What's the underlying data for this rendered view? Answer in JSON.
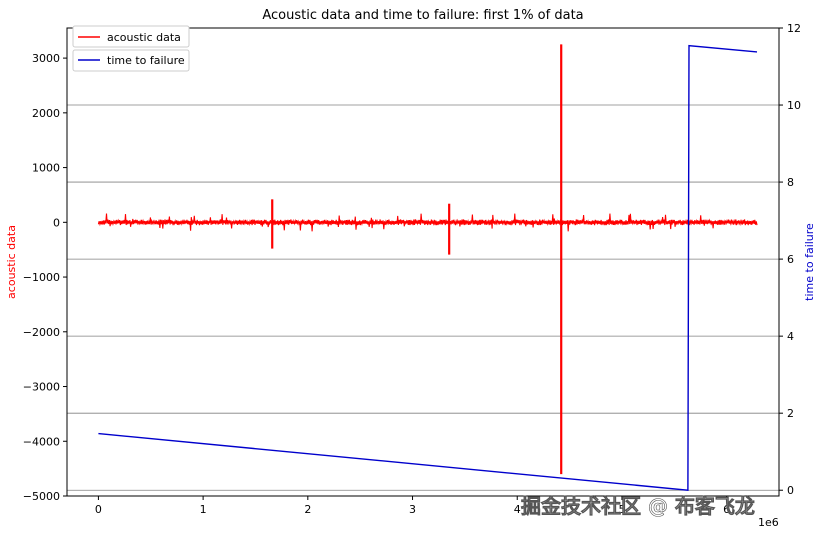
{
  "chart_data": {
    "type": "line",
    "title": "Acoustic data and time to failure: first 1% of data",
    "xlabel": "",
    "x_offset_label": "1e6",
    "ylabel_left": "acoustic data",
    "ylabel_right": "time to failure",
    "xlim": [
      -0.3,
      6.5
    ],
    "ylim_left": [
      -5000,
      3550
    ],
    "ylim_right": [
      -0.15,
      12.0
    ],
    "x_ticks": [
      "0",
      "1",
      "2",
      "3",
      "4",
      "5",
      "6"
    ],
    "y_left_ticks": [
      "3000",
      "2000",
      "1000",
      "0",
      "−1000",
      "−2000",
      "−3000",
      "−4000",
      "−5000"
    ],
    "y_right_ticks": [
      "0",
      "2",
      "4",
      "6",
      "8",
      "10",
      "12"
    ],
    "grid": "right-axis horizontal",
    "legend": "top-left",
    "colors": {
      "acoustic": "#ff0000",
      "ttf": "#0000cc",
      "grid": "#808080"
    },
    "series": [
      {
        "name": "acoustic data",
        "axis": "left",
        "baseline": 0,
        "noise_amplitude": 40,
        "bursts": [
          {
            "x": 1.66,
            "min": -480,
            "max": 420
          },
          {
            "x": 3.35,
            "min": -590,
            "max": 340
          },
          {
            "x": 4.42,
            "min": -4600,
            "max": 3250
          }
        ],
        "x_range": [
          0,
          6.29
        ]
      },
      {
        "name": "time to failure",
        "axis": "right",
        "points": [
          {
            "x": 0,
            "y": 1.47
          },
          {
            "x": 5.63,
            "y": 0.0
          },
          {
            "x": 5.64,
            "y": 11.54
          },
          {
            "x": 6.29,
            "y": 11.38
          }
        ]
      }
    ]
  },
  "watermark": "掘金技术社区 @ 布客飞龙"
}
